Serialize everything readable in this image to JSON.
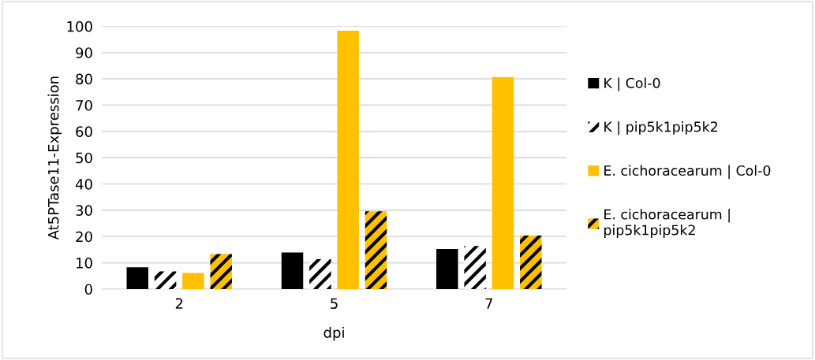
{
  "chart_data": {
    "type": "bar",
    "xlabel": "dpi",
    "ylabel": "At5PTase11-Expression",
    "categories": [
      "2",
      "5",
      "7"
    ],
    "series": [
      {
        "name": "K | Col-0",
        "color": "#000000",
        "values": [
          8.3,
          13.9,
          15.3
        ]
      },
      {
        "name": "K | pip5k1pip5k2",
        "color": "#ffffff",
        "values": [
          6.7,
          11.4,
          16.4
        ]
      },
      {
        "name": "E. cichoracearum | Col-0",
        "color": "#ffc000",
        "values": [
          6.1,
          98.3,
          80.7
        ]
      },
      {
        "name": "E. cichoracearum |\npip5k1pip5k2",
        "color": "#ffc000",
        "values": [
          13.3,
          29.6,
          20.4
        ]
      }
    ],
    "ylim": [
      0,
      100
    ],
    "yticks": [
      0,
      10,
      20,
      30,
      40,
      50,
      60,
      70,
      80,
      90,
      100
    ],
    "grid": "y",
    "legend": "right"
  }
}
